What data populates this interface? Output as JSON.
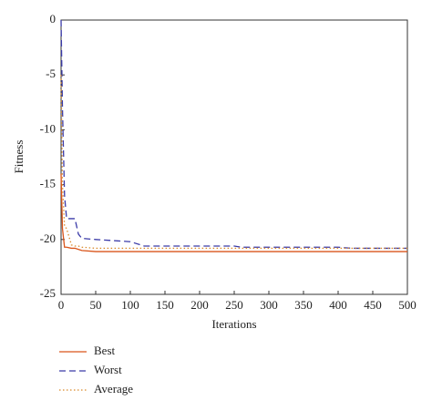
{
  "chart_data": {
    "type": "line",
    "x_label": "Iterations",
    "y_label": "Fitness",
    "x": [
      0,
      2,
      5,
      8,
      15,
      20,
      25,
      30,
      50,
      100,
      120,
      150,
      250,
      260,
      400,
      420,
      500
    ],
    "series": [
      {
        "name": "Best",
        "color": "#d9541a",
        "style": "solid",
        "values": [
          -14,
          -19,
          -20.7,
          -20.7,
          -20.8,
          -20.8,
          -20.9,
          -21.0,
          -21.1,
          -21.1,
          -21.1,
          -21.1,
          -21.1,
          -21.1,
          -21.1,
          -21.1,
          -21.1
        ]
      },
      {
        "name": "Worst",
        "color": "#3a3aa8",
        "style": "dashed",
        "values": [
          0,
          -8,
          -16,
          -18.1,
          -18.1,
          -18.1,
          -19.5,
          -19.9,
          -20.0,
          -20.2,
          -20.6,
          -20.6,
          -20.6,
          -20.7,
          -20.7,
          -20.8,
          -20.8
        ]
      },
      {
        "name": "Average",
        "color": "#d98a2a",
        "style": "dotted",
        "values": [
          -5,
          -15,
          -18.8,
          -19.0,
          -20.5,
          -20.6,
          -20.6,
          -20.7,
          -20.8,
          -20.8,
          -20.8,
          -20.8,
          -20.8,
          -20.8,
          -20.8,
          -20.8,
          -20.8
        ]
      }
    ],
    "xlim": [
      0,
      500
    ],
    "xticks": [
      0,
      50,
      100,
      150,
      200,
      250,
      300,
      350,
      400,
      450,
      500
    ],
    "ylim": [
      -25,
      0
    ],
    "yticks": [
      -25,
      -20,
      -15,
      -10,
      -5,
      0
    ],
    "grid": false,
    "legend": "below"
  }
}
